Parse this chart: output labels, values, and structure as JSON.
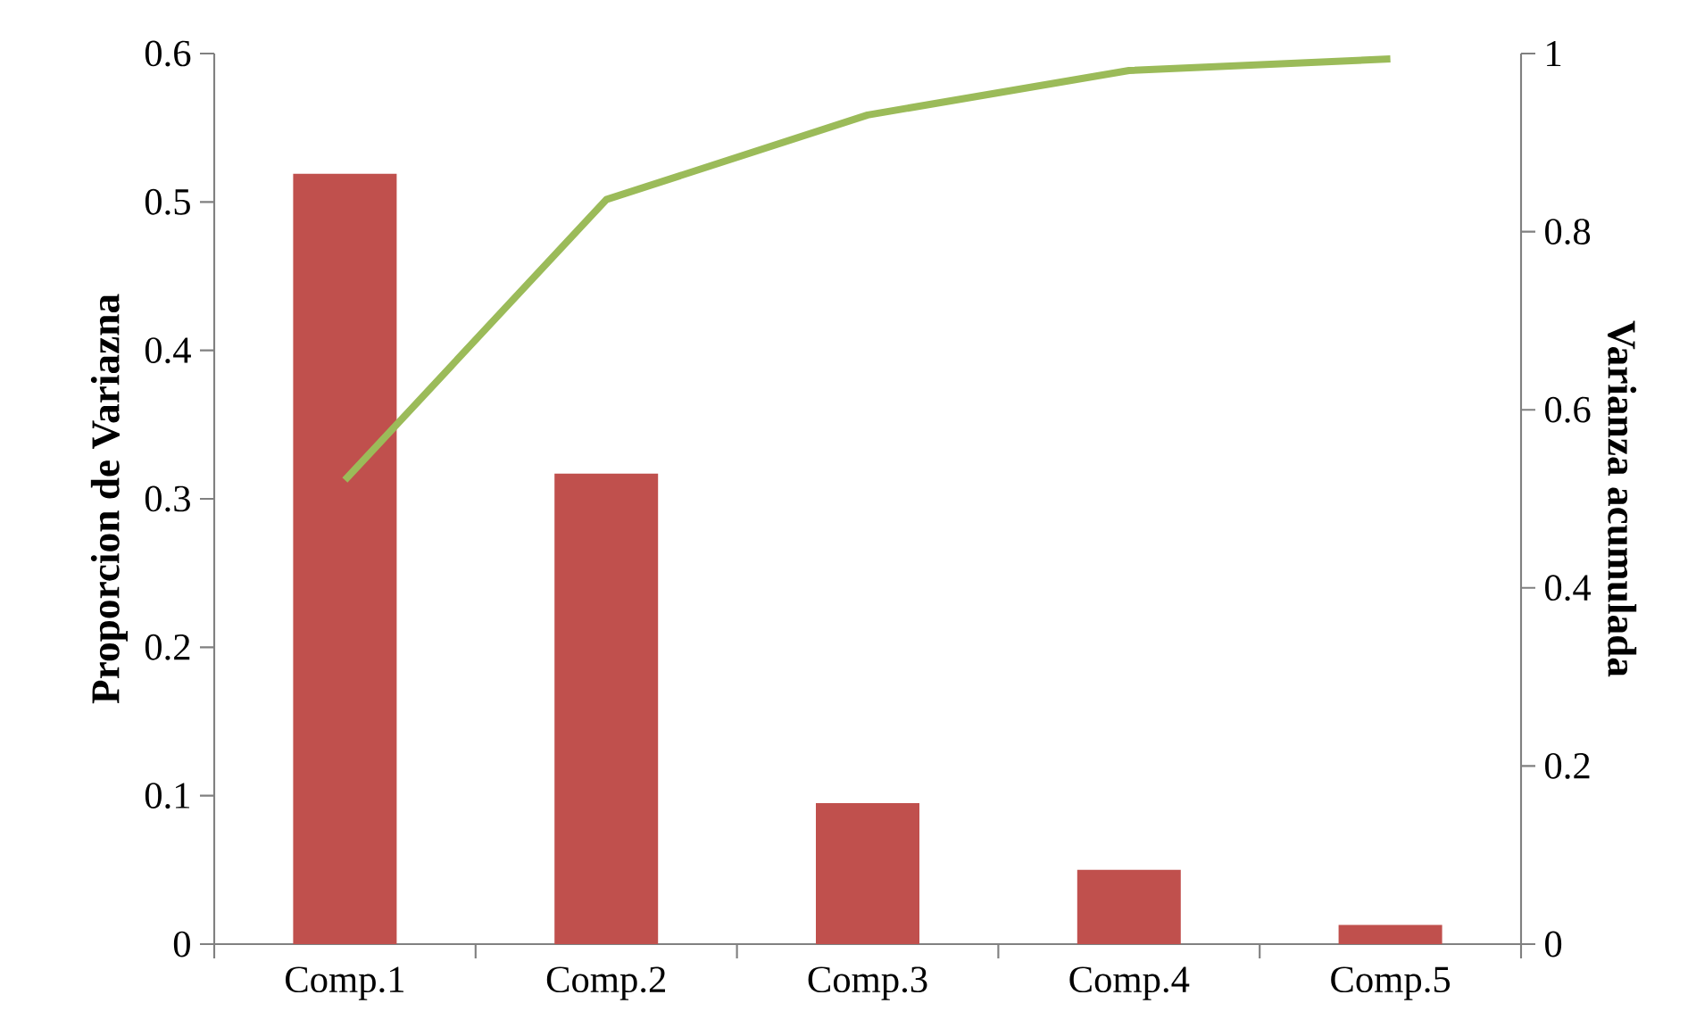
{
  "chart_data": {
    "type": "bar",
    "categories": [
      "Comp.1",
      "Comp.2",
      "Comp.3",
      "Comp.4",
      "Comp.5"
    ],
    "series": [
      {
        "color": "#c0504d",
        "values": [
          0.519,
          0.317,
          0.095,
          0.05,
          0.013
        ]
      },
      {
        "type": "line",
        "axis": "y2",
        "color": "#9bbb59",
        "values": [
          0.521,
          0.836,
          0.931,
          0.981,
          0.994
        ]
      }
    ],
    "ylim": [
      0,
      0.6
    ],
    "yticks": [
      0,
      0.1,
      0.2,
      0.3,
      0.4,
      0.5,
      0.6
    ],
    "y2lim": [
      0,
      1
    ],
    "y2ticks": [
      0,
      0.2,
      0.4,
      0.6,
      0.8,
      1
    ],
    "ylabel": "Proporcion de Variazna",
    "y2label": "Varianza acumulada",
    "marker": "none",
    "line_style": "solid"
  }
}
